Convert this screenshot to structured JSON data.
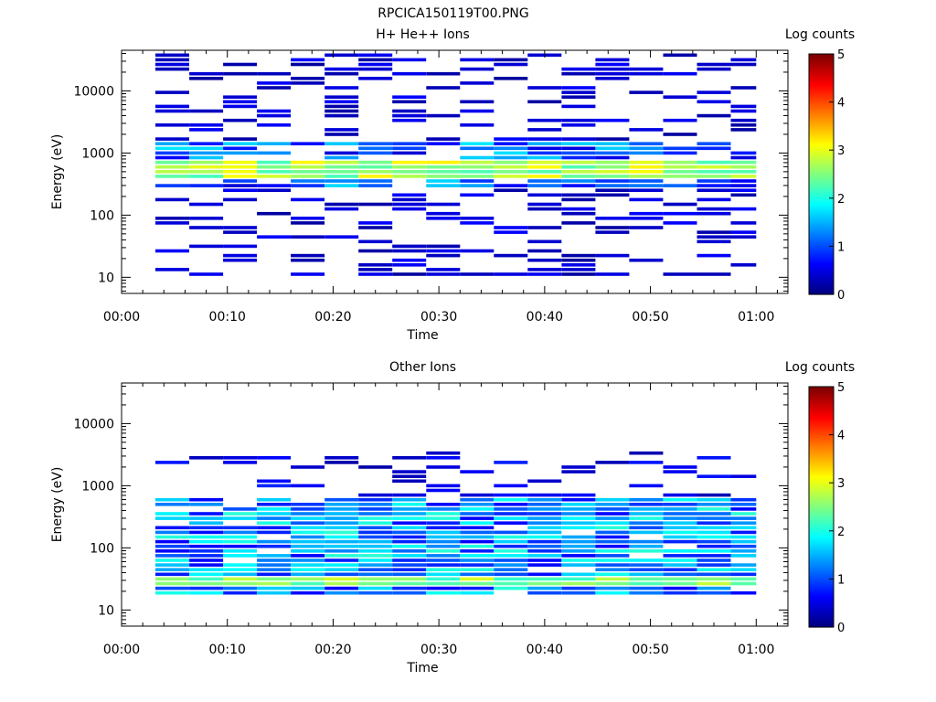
{
  "page_title": "RPCICA150119T00.PNG",
  "chart_data": [
    {
      "type": "heatmap",
      "title": "H+ He++ Ions",
      "xlabel": "Time",
      "ylabel": "Energy (eV)",
      "x_ticks": [
        "00:00",
        "00:10",
        "00:20",
        "00:30",
        "00:40",
        "00:50",
        "01:00"
      ],
      "x_range_minutes": [
        0,
        63
      ],
      "y_scale": "log",
      "y_range": [
        5.5,
        45000
      ],
      "y_ticks": [
        "10",
        "100",
        "1000",
        "10000"
      ],
      "grid": false,
      "colorbar": {
        "label": "Log counts",
        "range": [
          0,
          5
        ],
        "ticks": [
          "0",
          "1",
          "2",
          "3",
          "4",
          "5"
        ]
      },
      "columns_minutes": [
        3.2,
        6.4,
        9.6,
        12.8,
        16.0,
        19.2,
        22.4,
        25.6,
        28.8,
        32.0,
        35.2,
        38.4,
        41.6,
        44.8,
        48.0,
        51.2,
        54.4,
        57.6,
        60.0
      ],
      "notes": "Ion counts concentrated near 400-700 eV (log counts ~2.5-3.2), sparse low-count bins elsewhere between 10 eV and 40000 eV",
      "peak_band_eV": [
        400,
        700
      ],
      "peak_log_counts": 3.2
    },
    {
      "type": "heatmap",
      "title": "Other Ions",
      "xlabel": "Time",
      "ylabel": "Energy (eV)",
      "x_ticks": [
        "00:00",
        "00:10",
        "00:20",
        "00:30",
        "00:40",
        "00:50",
        "01:00"
      ],
      "x_range_minutes": [
        0,
        63
      ],
      "y_scale": "log",
      "y_range": [
        5.5,
        45000
      ],
      "y_ticks": [
        "10",
        "100",
        "1000",
        "10000"
      ],
      "grid": false,
      "colorbar": {
        "label": "Log counts",
        "range": [
          0,
          5
        ],
        "ticks": [
          "0",
          "1",
          "2",
          "3",
          "4",
          "5"
        ]
      },
      "columns_minutes": [
        3.2,
        6.4,
        9.6,
        12.8,
        16.0,
        19.2,
        22.4,
        25.6,
        28.8,
        32.0,
        35.2,
        38.4,
        41.6,
        44.8,
        48.0,
        51.2,
        54.4,
        57.6,
        60.0
      ],
      "notes": "Broad distribution 20-600 eV (log counts ~1-2), strongest band near 25-35 eV (log counts ~2.5-3)",
      "peak_band_eV": [
        25,
        35
      ],
      "peak_log_counts": 3.0
    }
  ]
}
